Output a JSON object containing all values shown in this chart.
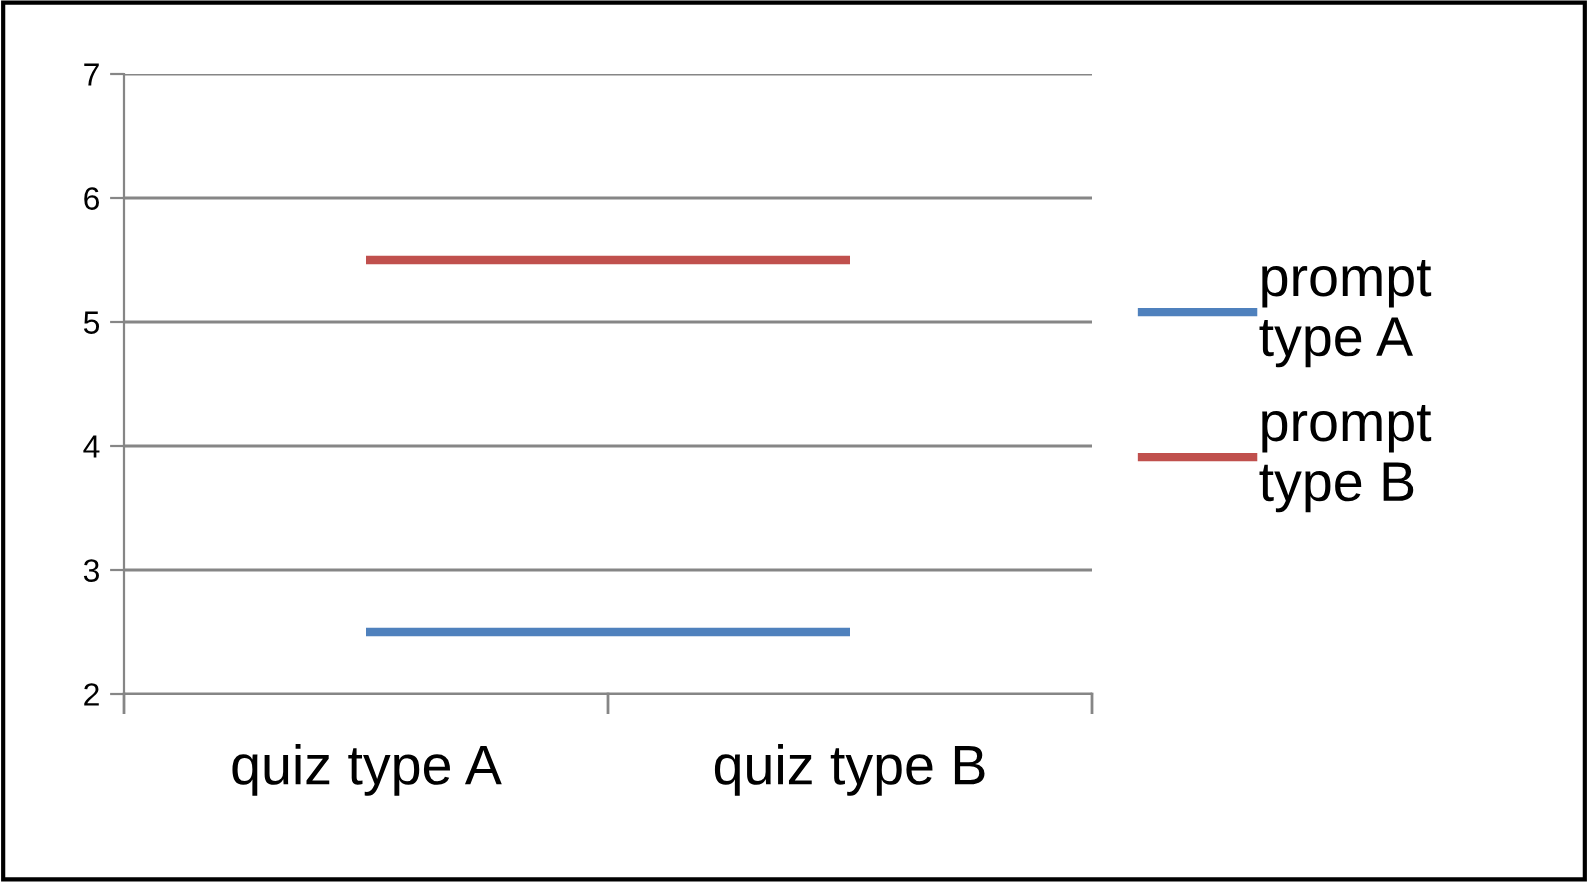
{
  "chart_data": {
    "type": "line",
    "categories": [
      "quiz type A",
      "quiz type B"
    ],
    "series": [
      {
        "name": "prompt type A",
        "color": "#4f81bd",
        "values": [
          2.5,
          2.5
        ]
      },
      {
        "name": "prompt type B",
        "color": "#c0504d",
        "values": [
          5.5,
          5.5
        ]
      }
    ],
    "ylim": [
      2,
      7
    ],
    "yticks": [
      2,
      3,
      4,
      5,
      6,
      7
    ],
    "grid": "y",
    "legend": "right",
    "marker": "none",
    "line_style": "solid"
  }
}
